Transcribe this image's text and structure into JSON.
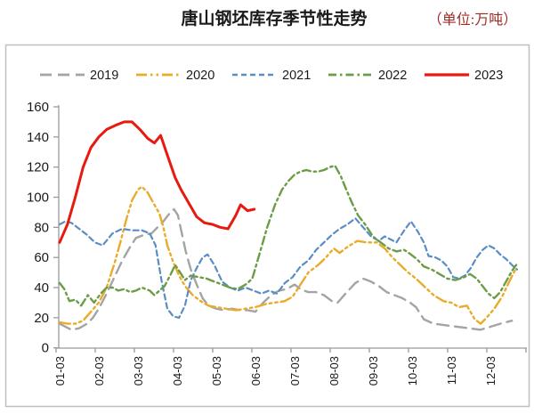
{
  "header": {
    "title": "唐山钢坯库存季节性走势",
    "unit_label": "（单位:万吨）",
    "title_color": "#1a1a1a",
    "unit_color": "#9E2B25"
  },
  "legend": {
    "items": [
      {
        "label": "2019"
      },
      {
        "label": "2020"
      },
      {
        "label": "2021"
      },
      {
        "label": "2022"
      },
      {
        "label": "2023"
      }
    ]
  },
  "chart_data": {
    "type": "line",
    "title": "唐山钢坯库存季节性走势",
    "unit": "万吨",
    "grid": false,
    "legend_position": "top",
    "x_axis": {
      "labels": [
        "01-03",
        "02-03",
        "03-03",
        "04-03",
        "05-03",
        "06-03",
        "07-03",
        "08-03",
        "09-03",
        "10-03",
        "11-03",
        "12-03"
      ],
      "x_unit": "month index: 1.0 = 01-03 ... 12.0 = 12-03, weekly points"
    },
    "y_axis": {
      "min": 0,
      "max": 160,
      "step": 20,
      "ticks": [
        0,
        20,
        40,
        60,
        80,
        100,
        120,
        140,
        160
      ]
    },
    "series": [
      {
        "name": "2019",
        "color": "#A4A4A4",
        "style": "long-dash",
        "width": 2.4,
        "points": [
          [
            1.0,
            16
          ],
          [
            1.15,
            14
          ],
          [
            1.3,
            12
          ],
          [
            1.5,
            13
          ],
          [
            1.7,
            16
          ],
          [
            1.85,
            20
          ],
          [
            2.0,
            26
          ],
          [
            2.2,
            36
          ],
          [
            2.4,
            47
          ],
          [
            2.6,
            58
          ],
          [
            2.8,
            67
          ],
          [
            2.95,
            73
          ],
          [
            3.15,
            75
          ],
          [
            3.35,
            76
          ],
          [
            3.5,
            80
          ],
          [
            3.65,
            84
          ],
          [
            3.8,
            89
          ],
          [
            3.92,
            92
          ],
          [
            4.02,
            88
          ],
          [
            4.12,
            76
          ],
          [
            4.22,
            64
          ],
          [
            4.35,
            52
          ],
          [
            4.5,
            42
          ],
          [
            4.65,
            33
          ],
          [
            4.8,
            28
          ],
          [
            5.0,
            26
          ],
          [
            5.2,
            25
          ],
          [
            5.4,
            26
          ],
          [
            5.6,
            25
          ],
          [
            5.8,
            25
          ],
          [
            6.0,
            24
          ],
          [
            6.2,
            30
          ],
          [
            6.4,
            35
          ],
          [
            6.6,
            38
          ],
          [
            6.8,
            39
          ],
          [
            7.0,
            42
          ],
          [
            7.15,
            39
          ],
          [
            7.35,
            37
          ],
          [
            7.55,
            37
          ],
          [
            7.75,
            35
          ],
          [
            7.95,
            31
          ],
          [
            8.1,
            30
          ],
          [
            8.3,
            36
          ],
          [
            8.55,
            43
          ],
          [
            8.75,
            46
          ],
          [
            8.95,
            44
          ],
          [
            9.15,
            41
          ],
          [
            9.35,
            37
          ],
          [
            9.55,
            35
          ],
          [
            9.75,
            33
          ],
          [
            9.95,
            30
          ],
          [
            10.1,
            27
          ],
          [
            10.3,
            19
          ],
          [
            10.55,
            16
          ],
          [
            10.85,
            15
          ],
          [
            11.15,
            14
          ],
          [
            11.45,
            13
          ],
          [
            11.75,
            12
          ],
          [
            12.0,
            14
          ],
          [
            12.25,
            16
          ],
          [
            12.55,
            18
          ]
        ]
      },
      {
        "name": "2020",
        "color": "#E9AB2A",
        "style": "dash-dot-dot",
        "width": 2.4,
        "points": [
          [
            1.0,
            17
          ],
          [
            1.2,
            16
          ],
          [
            1.4,
            16
          ],
          [
            1.6,
            18
          ],
          [
            1.8,
            24
          ],
          [
            2.0,
            30
          ],
          [
            2.2,
            40
          ],
          [
            2.4,
            56
          ],
          [
            2.55,
            70
          ],
          [
            2.7,
            85
          ],
          [
            2.85,
            98
          ],
          [
            3.0,
            105
          ],
          [
            3.1,
            107
          ],
          [
            3.25,
            103
          ],
          [
            3.4,
            96
          ],
          [
            3.55,
            89
          ],
          [
            3.65,
            80
          ],
          [
            3.75,
            68
          ],
          [
            3.9,
            57
          ],
          [
            4.05,
            48
          ],
          [
            4.2,
            41
          ],
          [
            4.4,
            35
          ],
          [
            4.6,
            31
          ],
          [
            4.8,
            28
          ],
          [
            5.0,
            27
          ],
          [
            5.25,
            26
          ],
          [
            5.5,
            25
          ],
          [
            5.75,
            26
          ],
          [
            6.0,
            27
          ],
          [
            6.25,
            29
          ],
          [
            6.5,
            30
          ],
          [
            6.75,
            31
          ],
          [
            6.95,
            34
          ],
          [
            7.15,
            42
          ],
          [
            7.35,
            50
          ],
          [
            7.6,
            55
          ],
          [
            7.8,
            60
          ],
          [
            8.0,
            66
          ],
          [
            8.15,
            63
          ],
          [
            8.35,
            67
          ],
          [
            8.6,
            71
          ],
          [
            8.85,
            70
          ],
          [
            9.1,
            70
          ],
          [
            9.3,
            66
          ],
          [
            9.5,
            60
          ],
          [
            9.7,
            55
          ],
          [
            9.9,
            50
          ],
          [
            10.1,
            46
          ],
          [
            10.3,
            41
          ],
          [
            10.55,
            35
          ],
          [
            10.8,
            31
          ],
          [
            11.0,
            30
          ],
          [
            11.2,
            27
          ],
          [
            11.4,
            28
          ],
          [
            11.6,
            19
          ],
          [
            11.75,
            16
          ],
          [
            11.9,
            20
          ],
          [
            12.1,
            26
          ],
          [
            12.3,
            34
          ],
          [
            12.5,
            45
          ],
          [
            12.64,
            52
          ]
        ]
      },
      {
        "name": "2021",
        "color": "#5B8DC5",
        "style": "short-dash",
        "width": 2.2,
        "points": [
          [
            1.0,
            82
          ],
          [
            1.15,
            84
          ],
          [
            1.3,
            83
          ],
          [
            1.5,
            79
          ],
          [
            1.7,
            75
          ],
          [
            1.9,
            70
          ],
          [
            2.1,
            68
          ],
          [
            2.35,
            76
          ],
          [
            2.6,
            79
          ],
          [
            2.85,
            78
          ],
          [
            3.1,
            78
          ],
          [
            3.3,
            76
          ],
          [
            3.45,
            68
          ],
          [
            3.6,
            45
          ],
          [
            3.75,
            26
          ],
          [
            3.9,
            21
          ],
          [
            4.05,
            20
          ],
          [
            4.2,
            28
          ],
          [
            4.35,
            45
          ],
          [
            4.5,
            53
          ],
          [
            4.65,
            60
          ],
          [
            4.78,
            62
          ],
          [
            4.95,
            55
          ],
          [
            5.15,
            44
          ],
          [
            5.35,
            40
          ],
          [
            5.55,
            38
          ],
          [
            5.75,
            40
          ],
          [
            5.95,
            38
          ],
          [
            6.15,
            36
          ],
          [
            6.35,
            38
          ],
          [
            6.55,
            36
          ],
          [
            6.75,
            43
          ],
          [
            6.95,
            47
          ],
          [
            7.15,
            54
          ],
          [
            7.35,
            58
          ],
          [
            7.55,
            65
          ],
          [
            7.75,
            70
          ],
          [
            7.95,
            75
          ],
          [
            8.15,
            79
          ],
          [
            8.35,
            82
          ],
          [
            8.55,
            86
          ],
          [
            8.75,
            80
          ],
          [
            8.95,
            74
          ],
          [
            9.15,
            71
          ],
          [
            9.3,
            74
          ],
          [
            9.45,
            72
          ],
          [
            9.6,
            70
          ],
          [
            9.8,
            78
          ],
          [
            9.97,
            84
          ],
          [
            10.15,
            77
          ],
          [
            10.3,
            70
          ],
          [
            10.42,
            61
          ],
          [
            10.6,
            60
          ],
          [
            10.75,
            58
          ],
          [
            10.9,
            54
          ],
          [
            11.05,
            47
          ],
          [
            11.2,
            46
          ],
          [
            11.35,
            48
          ],
          [
            11.5,
            53
          ],
          [
            11.65,
            60
          ],
          [
            11.8,
            65
          ],
          [
            11.95,
            68
          ],
          [
            12.1,
            66
          ],
          [
            12.25,
            62
          ],
          [
            12.4,
            59
          ],
          [
            12.55,
            55
          ],
          [
            12.68,
            52
          ]
        ]
      },
      {
        "name": "2022",
        "color": "#6D9C46",
        "style": "dash-dot",
        "width": 2.4,
        "points": [
          [
            1.0,
            43
          ],
          [
            1.12,
            39
          ],
          [
            1.25,
            31
          ],
          [
            1.4,
            32
          ],
          [
            1.55,
            28
          ],
          [
            1.72,
            35
          ],
          [
            1.88,
            30
          ],
          [
            2.05,
            36
          ],
          [
            2.2,
            40
          ],
          [
            2.35,
            40
          ],
          [
            2.5,
            38
          ],
          [
            2.65,
            39
          ],
          [
            2.8,
            37
          ],
          [
            2.95,
            38
          ],
          [
            3.1,
            40
          ],
          [
            3.3,
            38
          ],
          [
            3.42,
            35
          ],
          [
            3.55,
            38
          ],
          [
            3.68,
            41
          ],
          [
            3.82,
            48
          ],
          [
            3.95,
            55
          ],
          [
            4.08,
            50
          ],
          [
            4.2,
            45
          ],
          [
            4.35,
            48
          ],
          [
            4.55,
            47
          ],
          [
            4.75,
            46
          ],
          [
            4.95,
            44
          ],
          [
            5.15,
            42
          ],
          [
            5.35,
            40
          ],
          [
            5.55,
            39
          ],
          [
            5.75,
            42
          ],
          [
            5.92,
            46
          ],
          [
            6.1,
            62
          ],
          [
            6.3,
            80
          ],
          [
            6.5,
            95
          ],
          [
            6.68,
            105
          ],
          [
            6.85,
            111
          ],
          [
            7.0,
            115
          ],
          [
            7.15,
            117
          ],
          [
            7.3,
            118
          ],
          [
            7.45,
            117
          ],
          [
            7.6,
            117
          ],
          [
            7.75,
            118
          ],
          [
            7.9,
            120
          ],
          [
            8.03,
            121
          ],
          [
            8.18,
            114
          ],
          [
            8.32,
            105
          ],
          [
            8.47,
            96
          ],
          [
            8.62,
            88
          ],
          [
            8.8,
            82
          ],
          [
            9.0,
            74
          ],
          [
            9.2,
            70
          ],
          [
            9.4,
            66
          ],
          [
            9.6,
            64
          ],
          [
            9.8,
            65
          ],
          [
            9.97,
            62
          ],
          [
            10.12,
            59
          ],
          [
            10.3,
            54
          ],
          [
            10.5,
            52
          ],
          [
            10.7,
            49
          ],
          [
            10.9,
            46
          ],
          [
            11.1,
            45
          ],
          [
            11.3,
            46.5
          ],
          [
            11.48,
            49
          ],
          [
            11.65,
            46
          ],
          [
            11.8,
            41
          ],
          [
            11.95,
            36
          ],
          [
            12.1,
            33
          ],
          [
            12.25,
            37
          ],
          [
            12.4,
            44
          ],
          [
            12.55,
            51
          ],
          [
            12.66,
            55
          ]
        ]
      },
      {
        "name": "2023",
        "color": "#E8190F",
        "style": "solid",
        "width": 3,
        "points": [
          [
            1.0,
            70
          ],
          [
            1.2,
            82
          ],
          [
            1.4,
            100
          ],
          [
            1.6,
            120
          ],
          [
            1.8,
            133
          ],
          [
            2.0,
            140
          ],
          [
            2.2,
            145
          ],
          [
            2.45,
            148
          ],
          [
            2.65,
            150
          ],
          [
            2.85,
            150
          ],
          [
            3.05,
            145
          ],
          [
            3.25,
            139
          ],
          [
            3.42,
            136
          ],
          [
            3.58,
            141
          ],
          [
            3.75,
            128
          ],
          [
            3.95,
            113
          ],
          [
            4.1,
            105
          ],
          [
            4.3,
            96
          ],
          [
            4.5,
            87
          ],
          [
            4.7,
            83
          ],
          [
            4.9,
            82
          ],
          [
            5.1,
            80
          ],
          [
            5.3,
            79
          ],
          [
            5.5,
            88
          ],
          [
            5.62,
            95
          ],
          [
            5.8,
            91
          ],
          [
            5.97,
            92
          ]
        ]
      }
    ]
  }
}
